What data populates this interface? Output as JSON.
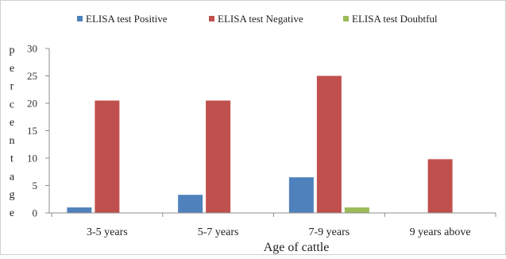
{
  "chart_data": {
    "type": "bar",
    "title": "",
    "xlabel": "Age of cattle",
    "ylabel": "percentage",
    "categories": [
      "3-5 years",
      "5-7 years",
      "7-9 years",
      "9 years above"
    ],
    "series": [
      {
        "name": "ELISA test Positive",
        "color": "#4f81bd",
        "values": [
          1,
          3.3,
          6.5,
          0
        ]
      },
      {
        "name": "ELISA test Negative",
        "color": "#c0504d",
        "values": [
          20.5,
          20.5,
          25,
          9.8
        ]
      },
      {
        "name": "ELISA test Doubtful",
        "color": "#9bbb59",
        "values": [
          0,
          0,
          1,
          0
        ]
      }
    ],
    "ylim": [
      0,
      30
    ],
    "yticks": [
      0,
      5,
      10,
      15,
      20,
      25,
      30
    ],
    "legend": "top",
    "grid": false
  }
}
